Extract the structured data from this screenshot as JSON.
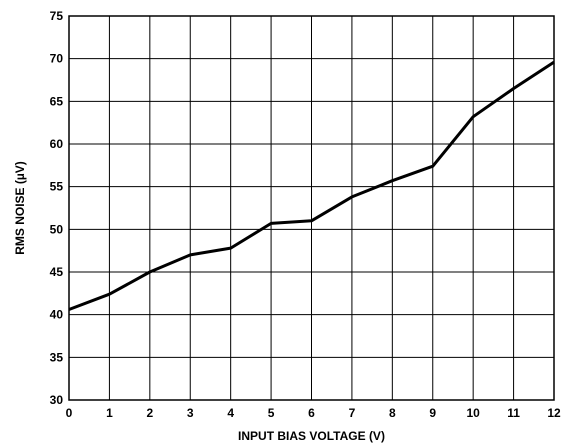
{
  "chart_data": {
    "type": "line",
    "title": "",
    "xlabel": "INPUT BIAS VOLTAGE (V)",
    "ylabel": "RMS NOISE (µV)",
    "xlim": [
      0,
      12
    ],
    "ylim": [
      30,
      75
    ],
    "x_ticks": [
      0,
      1,
      2,
      3,
      4,
      5,
      6,
      7,
      8,
      9,
      10,
      11,
      12
    ],
    "y_ticks": [
      30,
      35,
      40,
      45,
      50,
      55,
      60,
      65,
      70,
      75
    ],
    "grid": true,
    "line_color": "#000000",
    "series": [
      {
        "x": [
          0,
          1,
          2,
          3,
          4,
          5,
          6,
          7,
          8,
          9,
          10,
          11,
          12
        ],
        "y": [
          40.6,
          42.4,
          45.0,
          47.0,
          47.8,
          50.7,
          51.0,
          53.8,
          55.7,
          57.4,
          63.2,
          66.5,
          69.6
        ]
      }
    ]
  }
}
